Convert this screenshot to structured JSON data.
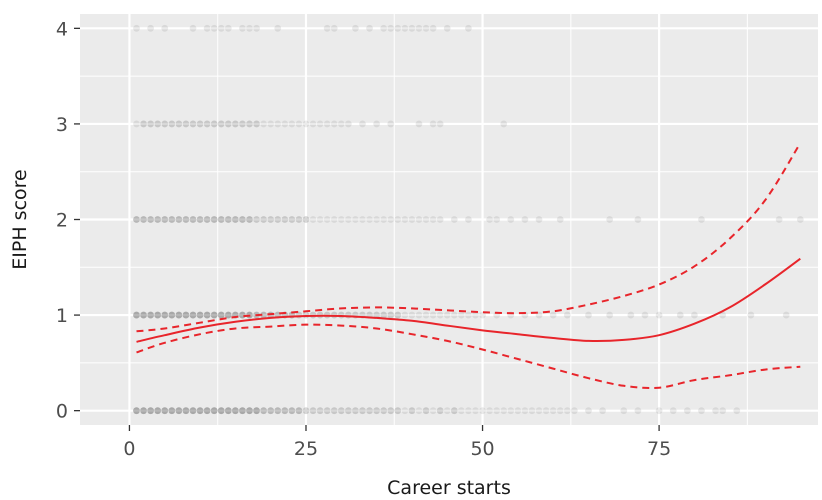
{
  "chart_data": {
    "type": "scatter",
    "title": "",
    "xlabel": "Career starts",
    "ylabel": "EIPH score",
    "xlim": [
      -7,
      97.5
    ],
    "ylim": [
      -0.15,
      4.15
    ],
    "x_ticks": [
      0,
      25,
      50,
      75
    ],
    "x_tick_labels": [
      "0",
      "25",
      "50",
      "75"
    ],
    "y_ticks": [
      0,
      1,
      2,
      3,
      4
    ],
    "y_tick_labels": [
      "0",
      "1",
      "2",
      "3",
      "4"
    ],
    "grid": true,
    "legend": "none",
    "colors": {
      "panel": "#ebebeb",
      "gridline": "#ffffff",
      "points": "#000000",
      "fit_line": "#e8252b"
    },
    "series": [
      {
        "kind": "points",
        "point_alpha": 0.08,
        "rows": [
          {
            "y": 0,
            "x": [
              1,
              1,
              1,
              1,
              2,
              2,
              2,
              2,
              3,
              3,
              3,
              3,
              4,
              4,
              4,
              4,
              5,
              5,
              5,
              5,
              6,
              6,
              6,
              6,
              7,
              7,
              7,
              7,
              8,
              8,
              8,
              8,
              9,
              9,
              9,
              9,
              10,
              10,
              10,
              10,
              11,
              11,
              11,
              11,
              12,
              12,
              12,
              12,
              13,
              13,
              13,
              13,
              14,
              14,
              14,
              14,
              15,
              15,
              15,
              15,
              16,
              16,
              16,
              16,
              17,
              17,
              17,
              17,
              18,
              18,
              18,
              18,
              19,
              19,
              19,
              20,
              20,
              20,
              21,
              21,
              21,
              22,
              22,
              22,
              23,
              23,
              23,
              24,
              24,
              24,
              25,
              25,
              26,
              26,
              27,
              27,
              28,
              28,
              29,
              29,
              30,
              30,
              31,
              31,
              32,
              32,
              33,
              33,
              34,
              34,
              35,
              35,
              36,
              36,
              37,
              37,
              38,
              38,
              39,
              40,
              40,
              41,
              42,
              42,
              43,
              44,
              44,
              45,
              46,
              46,
              47,
              48,
              49,
              50,
              51,
              52,
              53,
              54,
              55,
              56,
              57,
              58,
              59,
              60,
              61,
              62,
              63,
              65,
              67,
              70,
              72,
              75,
              77,
              79,
              81,
              83,
              84,
              86
            ]
          },
          {
            "y": 1,
            "x": [
              1,
              1,
              1,
              1,
              2,
              2,
              2,
              2,
              3,
              3,
              3,
              3,
              4,
              4,
              4,
              4,
              5,
              5,
              5,
              5,
              6,
              6,
              6,
              6,
              7,
              7,
              7,
              7,
              8,
              8,
              8,
              8,
              9,
              9,
              9,
              9,
              10,
              10,
              10,
              10,
              11,
              11,
              11,
              11,
              12,
              12,
              12,
              12,
              13,
              13,
              13,
              13,
              14,
              14,
              14,
              14,
              15,
              15,
              15,
              15,
              16,
              16,
              16,
              16,
              17,
              17,
              17,
              17,
              18,
              18,
              18,
              19,
              19,
              19,
              20,
              20,
              20,
              21,
              21,
              21,
              22,
              22,
              22,
              23,
              23,
              23,
              24,
              24,
              25,
              25,
              26,
              26,
              27,
              27,
              28,
              28,
              29,
              29,
              30,
              30,
              31,
              31,
              32,
              32,
              33,
              33,
              34,
              34,
              35,
              35,
              36,
              36,
              37,
              37,
              38,
              38,
              39,
              40,
              41,
              42,
              43,
              44,
              45,
              46,
              47,
              48,
              49,
              50,
              52,
              54,
              56,
              58,
              60,
              62,
              65,
              68,
              71,
              73,
              75,
              78,
              80,
              84,
              88,
              93
            ]
          },
          {
            "y": 2,
            "x": [
              1,
              1,
              1,
              2,
              2,
              2,
              3,
              3,
              3,
              4,
              4,
              4,
              5,
              5,
              5,
              6,
              6,
              6,
              7,
              7,
              7,
              8,
              8,
              8,
              9,
              9,
              9,
              10,
              10,
              10,
              11,
              11,
              11,
              12,
              12,
              12,
              13,
              13,
              13,
              14,
              14,
              14,
              15,
              15,
              15,
              16,
              16,
              16,
              17,
              17,
              17,
              18,
              18,
              19,
              19,
              20,
              20,
              21,
              21,
              22,
              22,
              23,
              23,
              24,
              24,
              25,
              25,
              26,
              27,
              28,
              29,
              30,
              31,
              32,
              33,
              34,
              35,
              36,
              37,
              38,
              39,
              40,
              41,
              42,
              43,
              44,
              46,
              48,
              51,
              52,
              54,
              56,
              58,
              61,
              68,
              72,
              81,
              92,
              95
            ]
          },
          {
            "y": 3,
            "x": [
              1,
              2,
              2,
              3,
              3,
              4,
              4,
              5,
              5,
              6,
              6,
              7,
              7,
              8,
              8,
              9,
              9,
              10,
              10,
              11,
              11,
              12,
              12,
              13,
              13,
              14,
              14,
              15,
              15,
              16,
              16,
              17,
              17,
              18,
              18,
              19,
              20,
              21,
              22,
              23,
              24,
              25,
              26,
              27,
              28,
              29,
              30,
              31,
              33,
              35,
              37,
              41,
              43,
              44,
              53
            ]
          },
          {
            "y": 4,
            "x": [
              1,
              3,
              5,
              9,
              11,
              12,
              13,
              14,
              16,
              17,
              18,
              21,
              28,
              29,
              32,
              34,
              36,
              37,
              38,
              39,
              40,
              41,
              42,
              43,
              45,
              48
            ]
          }
        ]
      },
      {
        "kind": "fit",
        "line_style": "solid",
        "points": [
          [
            1,
            0.72
          ],
          [
            5,
            0.79
          ],
          [
            10,
            0.87
          ],
          [
            15,
            0.93
          ],
          [
            20,
            0.97
          ],
          [
            25,
            0.99
          ],
          [
            30,
            0.99
          ],
          [
            35,
            0.97
          ],
          [
            40,
            0.94
          ],
          [
            45,
            0.89
          ],
          [
            50,
            0.84
          ],
          [
            55,
            0.8
          ],
          [
            60,
            0.76
          ],
          [
            65,
            0.73
          ],
          [
            70,
            0.74
          ],
          [
            75,
            0.79
          ],
          [
            80,
            0.91
          ],
          [
            85,
            1.08
          ],
          [
            90,
            1.32
          ],
          [
            95,
            1.59
          ]
        ]
      },
      {
        "kind": "upper-ci",
        "line_style": "dashed",
        "points": [
          [
            1,
            0.83
          ],
          [
            5,
            0.86
          ],
          [
            10,
            0.92
          ],
          [
            15,
            0.98
          ],
          [
            20,
            1.01
          ],
          [
            25,
            1.04
          ],
          [
            30,
            1.07
          ],
          [
            35,
            1.08
          ],
          [
            40,
            1.07
          ],
          [
            45,
            1.05
          ],
          [
            50,
            1.03
          ],
          [
            55,
            1.02
          ],
          [
            60,
            1.04
          ],
          [
            65,
            1.11
          ],
          [
            70,
            1.2
          ],
          [
            75,
            1.32
          ],
          [
            80,
            1.51
          ],
          [
            85,
            1.8
          ],
          [
            90,
            2.2
          ],
          [
            95,
            2.8
          ]
        ]
      },
      {
        "kind": "lower-ci",
        "line_style": "dashed",
        "points": [
          [
            1,
            0.61
          ],
          [
            5,
            0.71
          ],
          [
            10,
            0.8
          ],
          [
            15,
            0.86
          ],
          [
            20,
            0.88
          ],
          [
            25,
            0.9
          ],
          [
            30,
            0.89
          ],
          [
            35,
            0.86
          ],
          [
            40,
            0.8
          ],
          [
            45,
            0.73
          ],
          [
            50,
            0.64
          ],
          [
            55,
            0.54
          ],
          [
            60,
            0.44
          ],
          [
            65,
            0.34
          ],
          [
            70,
            0.26
          ],
          [
            75,
            0.24
          ],
          [
            80,
            0.32
          ],
          [
            85,
            0.37
          ],
          [
            90,
            0.43
          ],
          [
            95,
            0.46
          ]
        ]
      }
    ]
  }
}
